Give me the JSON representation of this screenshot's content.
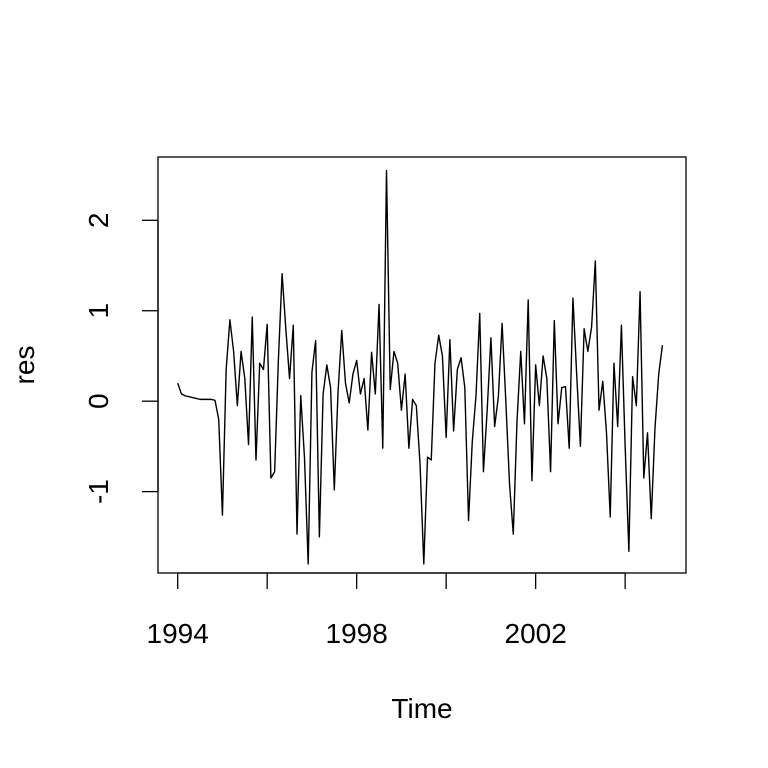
{
  "chart_data": {
    "type": "line",
    "title": "",
    "xlabel": "Time",
    "ylabel": "res",
    "xlim": [
      1993.56,
      2005.36
    ],
    "ylim": [
      -1.9,
      2.7
    ],
    "x_ticks": [
      1994,
      1996,
      1998,
      2000,
      2002,
      2004
    ],
    "x_tick_labels": [
      "1994",
      "",
      "1998",
      "",
      "2002",
      ""
    ],
    "y_ticks": [
      -1,
      0,
      1,
      2
    ],
    "y_tick_labels": [
      "-1",
      "0",
      "1",
      "2"
    ],
    "grid": false,
    "line_color": "#000000",
    "series": [
      {
        "start": 1994,
        "frequency": 12,
        "values": [
          0.2,
          0.08,
          0.06,
          0.05,
          0.04,
          0.03,
          0.02,
          0.02,
          0.02,
          0.02,
          0.01,
          -0.2,
          -1.26,
          0.35,
          0.9,
          0.55,
          -0.05,
          0.55,
          0.25,
          -0.48,
          0.93,
          -0.65,
          0.42,
          0.35,
          0.85,
          -0.85,
          -0.78,
          0.45,
          1.41,
          0.8,
          0.25,
          0.84,
          -1.47,
          0.06,
          -0.62,
          -1.8,
          0.32,
          0.67,
          -1.5,
          0.08,
          0.4,
          0.15,
          -0.98,
          0.1,
          0.78,
          0.2,
          -0.02,
          0.3,
          0.45,
          0.08,
          0.25,
          -0.32,
          0.54,
          0.08,
          1.07,
          -0.52,
          2.55,
          0.13,
          0.55,
          0.42,
          -0.1,
          0.3,
          -0.52,
          0.02,
          -0.05,
          -0.7,
          -1.8,
          -0.62,
          -0.65,
          0.42,
          0.73,
          0.5,
          -0.4,
          0.68,
          -0.33,
          0.35,
          0.48,
          0.15,
          -1.32,
          -0.45,
          0.06,
          0.97,
          -0.78,
          -0.1,
          0.7,
          -0.28,
          0.05,
          0.86,
          0.0,
          -0.92,
          -1.47,
          -0.22,
          0.55,
          -0.25,
          1.12,
          -0.88,
          0.4,
          -0.05,
          0.5,
          0.25,
          -0.78,
          0.89,
          -0.25,
          0.15,
          0.16,
          -0.52,
          1.14,
          0.3,
          -0.5,
          0.8,
          0.55,
          0.82,
          1.55,
          -0.1,
          0.22,
          -0.35,
          -1.28,
          0.42,
          -0.28,
          0.84,
          -0.5,
          -1.66,
          0.27,
          -0.05,
          1.21,
          -0.85,
          -0.35,
          -1.3,
          -0.3,
          0.3,
          0.62
        ]
      }
    ]
  }
}
